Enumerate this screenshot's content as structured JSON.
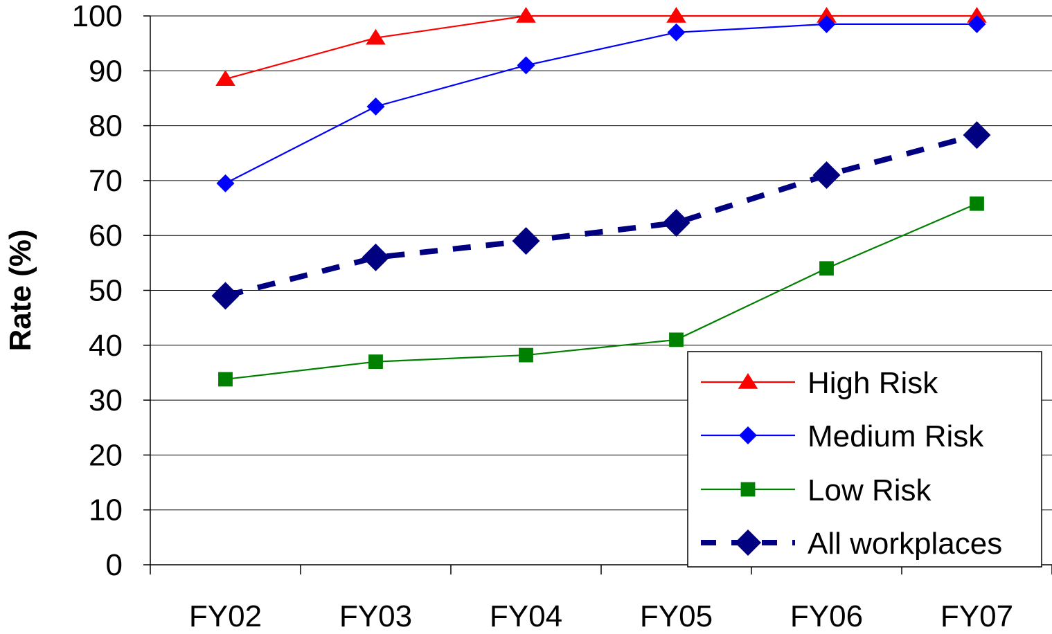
{
  "chart_data": {
    "type": "line",
    "title": "",
    "xlabel": "",
    "ylabel": "Rate (%)",
    "ylim": [
      0,
      100
    ],
    "y_ticks": [
      0,
      10,
      20,
      30,
      40,
      50,
      60,
      70,
      80,
      90,
      100
    ],
    "categories": [
      "FY02",
      "FY03",
      "FY04",
      "FY05",
      "FY06",
      "FY07"
    ],
    "grid": "horizontal",
    "legend_position": "bottom-right",
    "series": [
      {
        "name": "High Risk",
        "color": "#ff0000",
        "marker": "triangle",
        "line_style": "solid",
        "values": [
          88.5,
          96,
          100,
          100,
          100,
          100
        ]
      },
      {
        "name": "Medium Risk",
        "color": "#0000ff",
        "marker": "diamond",
        "line_style": "solid",
        "values": [
          69.5,
          83.5,
          91,
          97,
          98.5,
          98.5
        ]
      },
      {
        "name": "Low Risk",
        "color": "#008000",
        "marker": "square",
        "line_style": "solid",
        "values": [
          33.8,
          37,
          38.2,
          41,
          54,
          65.8
        ]
      },
      {
        "name": "All workplaces",
        "color": "#000080",
        "marker": "diamond",
        "line_style": "dashed",
        "values": [
          49,
          56,
          59,
          62.3,
          71,
          78.3
        ]
      }
    ]
  }
}
